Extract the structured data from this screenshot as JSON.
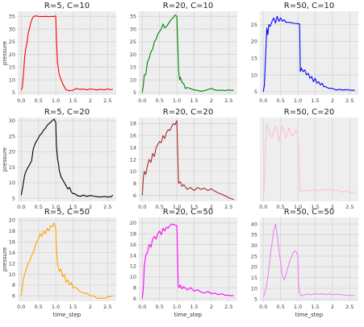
{
  "figure": {
    "background": "#ffffff",
    "axes_facecolor": "#eeeeee",
    "grid_color": "#d4d4d4"
  },
  "chart_data": [
    {
      "type": "line",
      "title": "R=5, C=10",
      "xlabel": "",
      "ylabel": "pressure",
      "color": "#ff0000",
      "xlim": [
        -0.1,
        2.75
      ],
      "ylim": [
        4,
        37
      ],
      "xticks": [
        0.0,
        0.5,
        1.0,
        1.5,
        2.0,
        2.5
      ],
      "yticks": [
        5,
        10,
        15,
        20,
        25,
        30,
        35
      ],
      "x": [
        0.0,
        0.03,
        0.07,
        0.1,
        0.13,
        0.17,
        0.2,
        0.25,
        0.3,
        0.35,
        0.4,
        0.5,
        0.6,
        0.7,
        0.8,
        0.9,
        0.95,
        0.98,
        1.0,
        1.02,
        1.05,
        1.1,
        1.2,
        1.3,
        1.4,
        1.5,
        1.6,
        1.7,
        1.8,
        1.9,
        2.0,
        2.1,
        2.2,
        2.3,
        2.4,
        2.5,
        2.6,
        2.65
      ],
      "y": [
        6,
        7,
        13,
        19,
        22,
        25,
        28,
        31,
        33.5,
        34.8,
        35.2,
        35.0,
        34.9,
        35.0,
        34.9,
        35.0,
        34.9,
        35.2,
        35.0,
        26,
        17,
        12,
        8.5,
        6,
        5.7,
        5.9,
        6.6,
        6.2,
        6.4,
        6.0,
        6.4,
        6.2,
        6.0,
        6.3,
        6.0,
        6.4,
        6.1,
        6.3
      ]
    },
    {
      "type": "line",
      "title": "R=20, C=10",
      "xlabel": "",
      "ylabel": "",
      "color": "#008000",
      "xlim": [
        -0.1,
        2.75
      ],
      "ylim": [
        4,
        37
      ],
      "xticks": [
        0.0,
        0.5,
        1.0,
        1.5,
        2.0,
        2.5
      ],
      "yticks": [
        5,
        10,
        15,
        20,
        25,
        30,
        35
      ],
      "x": [
        0.0,
        0.03,
        0.06,
        0.1,
        0.15,
        0.2,
        0.25,
        0.3,
        0.35,
        0.4,
        0.45,
        0.5,
        0.55,
        0.6,
        0.65,
        0.7,
        0.75,
        0.8,
        0.85,
        0.9,
        0.95,
        1.0,
        1.03,
        1.05,
        1.08,
        1.1,
        1.15,
        1.2,
        1.25,
        1.3,
        1.4,
        1.5,
        1.6,
        1.7,
        1.8,
        1.9,
        2.0,
        2.1,
        2.2,
        2.3,
        2.4,
        2.5,
        2.6,
        2.65
      ],
      "y": [
        5,
        8,
        12,
        12,
        17,
        18.5,
        21,
        22,
        25,
        26,
        28,
        29,
        30,
        32,
        30.5,
        31,
        32,
        33,
        34,
        34.5,
        35.5,
        35,
        22,
        14,
        10,
        11,
        9,
        8.5,
        6.5,
        7,
        6.5,
        6.0,
        5.8,
        5.5,
        5.7,
        6.2,
        6.6,
        6.0,
        5.8,
        5.9,
        5.7,
        6.0,
        5.8,
        5.9
      ]
    },
    {
      "type": "line",
      "title": "R=50, C=10",
      "xlabel": "",
      "ylabel": "",
      "color": "#0000ff",
      "xlim": [
        -0.1,
        2.75
      ],
      "ylim": [
        4,
        29
      ],
      "xticks": [
        0.0,
        0.5,
        1.0,
        1.5,
        2.0,
        2.5
      ],
      "yticks": [
        5,
        10,
        15,
        20,
        25
      ],
      "x": [
        0.0,
        0.03,
        0.06,
        0.1,
        0.13,
        0.16,
        0.2,
        0.25,
        0.3,
        0.35,
        0.4,
        0.45,
        0.5,
        0.55,
        0.6,
        0.65,
        0.7,
        0.8,
        0.9,
        1.0,
        1.05,
        1.07,
        1.1,
        1.15,
        1.2,
        1.25,
        1.3,
        1.35,
        1.4,
        1.45,
        1.5,
        1.55,
        1.6,
        1.65,
        1.7,
        1.75,
        1.8,
        1.9,
        2.0,
        2.1,
        2.2,
        2.3,
        2.4,
        2.5,
        2.6,
        2.65
      ],
      "y": [
        5,
        7,
        14,
        24,
        22,
        25,
        24.5,
        26,
        27,
        25.5,
        27.5,
        26,
        27,
        26,
        26.5,
        25.7,
        25.7,
        25.6,
        25.4,
        25.3,
        25.2,
        11,
        12,
        11,
        11.5,
        10,
        10.5,
        9,
        9.5,
        8,
        9,
        7.5,
        8,
        7,
        7.5,
        6.5,
        6.5,
        6,
        6,
        5.5,
        5.7,
        5.5,
        5.6,
        5.5,
        5.4,
        5.5
      ]
    },
    {
      "type": "line",
      "title": "R=5, C=20",
      "xlabel": "",
      "ylabel": "pressure",
      "color": "#000000",
      "xlim": [
        -0.1,
        2.75
      ],
      "ylim": [
        4,
        31
      ],
      "xticks": [
        0.0,
        0.5,
        1.0,
        1.5,
        2.0,
        2.5
      ],
      "yticks": [
        5,
        10,
        15,
        20,
        25,
        30
      ],
      "x": [
        0.0,
        0.05,
        0.1,
        0.15,
        0.2,
        0.25,
        0.3,
        0.35,
        0.4,
        0.45,
        0.5,
        0.55,
        0.6,
        0.65,
        0.7,
        0.75,
        0.8,
        0.85,
        0.9,
        0.95,
        1.0,
        1.02,
        1.05,
        1.08,
        1.1,
        1.15,
        1.2,
        1.25,
        1.3,
        1.35,
        1.4,
        1.45,
        1.5,
        1.55,
        1.6,
        1.7,
        1.8,
        1.9,
        2.0,
        2.1,
        2.2,
        2.3,
        2.4,
        2.5,
        2.6,
        2.65
      ],
      "y": [
        6,
        9,
        12.5,
        14,
        15,
        16,
        17,
        21,
        22.5,
        23.5,
        24.5,
        25.5,
        26,
        27,
        27.5,
        28.5,
        29,
        29.5,
        30,
        30.5,
        29.5,
        22,
        18,
        16,
        14,
        12,
        11,
        10,
        9,
        8,
        8.5,
        7,
        6.5,
        6.5,
        6,
        5.6,
        6.0,
        5.6,
        5.9,
        5.7,
        5.5,
        5.4,
        5.6,
        5.4,
        5.5,
        6.0
      ]
    },
    {
      "type": "line",
      "title": "R=20, C=20",
      "xlabel": "",
      "ylabel": "",
      "color": "#a52a2a",
      "xlim": [
        -0.1,
        2.75
      ],
      "ylim": [
        5,
        19
      ],
      "xticks": [
        0.0,
        0.5,
        1.0,
        1.5,
        2.0,
        2.5
      ],
      "yticks": [
        6,
        8,
        10,
        12,
        14,
        16,
        18
      ],
      "x": [
        0.0,
        0.03,
        0.06,
        0.1,
        0.15,
        0.2,
        0.25,
        0.3,
        0.35,
        0.4,
        0.45,
        0.5,
        0.55,
        0.6,
        0.65,
        0.7,
        0.75,
        0.8,
        0.85,
        0.9,
        0.95,
        1.0,
        1.03,
        1.05,
        1.1,
        1.15,
        1.2,
        1.3,
        1.4,
        1.5,
        1.6,
        1.7,
        1.8,
        1.9,
        2.0,
        2.1,
        2.2,
        2.3,
        2.4,
        2.5,
        2.6,
        2.65
      ],
      "y": [
        6,
        9,
        10,
        9.5,
        11,
        12,
        11.5,
        13,
        12.5,
        14,
        14.5,
        15,
        14.8,
        16,
        15.5,
        16.5,
        17,
        16.8,
        17.5,
        18,
        17.8,
        18.5,
        12,
        8,
        8.3,
        7.5,
        7.8,
        7.0,
        7.3,
        6.8,
        7.3,
        7.0,
        7.2,
        6.8,
        7.1,
        6.7,
        6.4,
        6.2,
        5.9,
        5.6,
        5.4,
        5.3
      ]
    },
    {
      "type": "line",
      "title": "R=50, C=20",
      "xlabel": "",
      "ylabel": "",
      "color": "#ffc0cb",
      "xlim": [
        -0.1,
        2.75
      ],
      "ylim": [
        4,
        29
      ],
      "xticks": [
        0.0,
        0.5,
        1.0,
        1.5,
        2.0,
        2.5
      ],
      "yticks": [],
      "x": [
        0.0,
        0.03,
        0.06,
        0.1,
        0.15,
        0.2,
        0.25,
        0.3,
        0.35,
        0.4,
        0.45,
        0.5,
        0.55,
        0.6,
        0.65,
        0.7,
        0.75,
        0.8,
        0.85,
        0.9,
        0.95,
        1.0,
        1.03,
        1.05,
        1.08,
        1.1,
        1.2,
        1.3,
        1.4,
        1.5,
        1.6,
        1.7,
        1.8,
        1.9,
        2.0,
        2.1,
        2.2,
        2.3,
        2.4,
        2.5,
        2.6,
        2.65
      ],
      "y": [
        5,
        9,
        20,
        27,
        26,
        24,
        23,
        25,
        26.5,
        25,
        22,
        24,
        26.5,
        25,
        23,
        24.5,
        26,
        24,
        23.5,
        24.5,
        25.5,
        24,
        16,
        7,
        7.5,
        7.2,
        7.0,
        7.4,
        7.1,
        7.6,
        7.0,
        7.6,
        7.2,
        7.8,
        7.1,
        7.4,
        7.0,
        6.8,
        7.2,
        6.5,
        6.8,
        6.5
      ]
    },
    {
      "type": "line",
      "title": "R=5, C=50",
      "xlabel": "time_step",
      "ylabel": "pressure",
      "color": "#ffa500",
      "xlim": [
        -0.1,
        2.75
      ],
      "ylim": [
        5,
        20.5
      ],
      "xticks": [
        0.0,
        0.5,
        1.0,
        1.5,
        2.0,
        2.5
      ],
      "yticks": [
        6,
        8,
        10,
        12,
        14,
        16,
        18,
        20
      ],
      "x": [
        0.0,
        0.03,
        0.06,
        0.1,
        0.15,
        0.2,
        0.25,
        0.3,
        0.35,
        0.4,
        0.45,
        0.5,
        0.55,
        0.6,
        0.65,
        0.7,
        0.75,
        0.8,
        0.85,
        0.9,
        0.95,
        1.0,
        1.02,
        1.05,
        1.1,
        1.15,
        1.2,
        1.25,
        1.3,
        1.35,
        1.4,
        1.45,
        1.5,
        1.6,
        1.7,
        1.8,
        1.9,
        2.0,
        2.1,
        2.2,
        2.3,
        2.4,
        2.5,
        2.6,
        2.65
      ],
      "y": [
        6,
        7.5,
        9,
        10,
        11,
        12,
        12.5,
        13.5,
        14,
        15,
        16,
        16.5,
        17.5,
        17,
        18,
        17.5,
        18.5,
        18,
        19,
        18.8,
        19.5,
        18.5,
        15,
        12,
        10.5,
        11,
        9.5,
        10,
        8.5,
        9,
        8,
        8.5,
        7.5,
        7.5,
        6.8,
        6.5,
        6.5,
        6.0,
        6.0,
        5.5,
        5.6,
        5.5,
        5.8,
        5.9,
        6.0
      ]
    },
    {
      "type": "line",
      "title": "R=20, C=50",
      "xlabel": "time_step",
      "ylabel": "",
      "color": "#ff00ff",
      "xlim": [
        -0.1,
        2.75
      ],
      "ylim": [
        5.5,
        21
      ],
      "xticks": [
        0.0,
        0.5,
        1.0,
        1.5,
        2.0,
        2.5
      ],
      "yticks": [
        6,
        8,
        10,
        12,
        14,
        16,
        18,
        20
      ],
      "x": [
        0.0,
        0.03,
        0.06,
        0.1,
        0.15,
        0.2,
        0.25,
        0.3,
        0.35,
        0.4,
        0.45,
        0.5,
        0.55,
        0.6,
        0.65,
        0.7,
        0.75,
        0.8,
        0.85,
        0.9,
        0.95,
        1.0,
        1.02,
        1.04,
        1.06,
        1.1,
        1.15,
        1.2,
        1.3,
        1.4,
        1.5,
        1.6,
        1.7,
        1.8,
        1.9,
        2.0,
        2.1,
        2.2,
        2.3,
        2.4,
        2.5,
        2.6,
        2.65
      ],
      "y": [
        6,
        8,
        12,
        14,
        14.5,
        16,
        15.5,
        17,
        17.5,
        17,
        18,
        18.5,
        17.8,
        19,
        18.5,
        19.2,
        19,
        19.5,
        19.8,
        19.7,
        19.6,
        19.5,
        15,
        8.5,
        8,
        8.5,
        7.8,
        8.2,
        7.6,
        8.0,
        7.4,
        7.6,
        7.2,
        7.0,
        7.3,
        6.9,
        7.0,
        6.7,
        6.9,
        6.6,
        6.6,
        6.5,
        6.6
      ]
    },
    {
      "type": "line",
      "title": "R=50, C=50",
      "xlabel": "time_step",
      "ylabel": "",
      "color": "#ee82ee",
      "xlim": [
        -0.1,
        2.75
      ],
      "ylim": [
        4,
        43
      ],
      "xticks": [
        0.0,
        0.5,
        1.0,
        1.5,
        2.0,
        2.5
      ],
      "yticks": [
        5,
        10,
        15,
        20,
        25,
        30,
        35,
        40
      ],
      "x": [
        0.0,
        0.05,
        0.1,
        0.15,
        0.2,
        0.25,
        0.3,
        0.35,
        0.4,
        0.45,
        0.5,
        0.55,
        0.6,
        0.65,
        0.7,
        0.75,
        0.8,
        0.85,
        0.9,
        0.95,
        1.0,
        1.02,
        1.05,
        1.1,
        1.2,
        1.3,
        1.4,
        1.5,
        1.6,
        1.7,
        1.8,
        1.9,
        2.0,
        2.1,
        2.2,
        2.3,
        2.4,
        2.5,
        2.6,
        2.65
      ],
      "y": [
        6,
        8,
        12,
        18,
        25,
        31,
        37,
        40,
        35,
        28,
        22,
        16,
        14,
        16,
        19,
        22,
        24,
        26,
        27.5,
        27,
        25,
        12,
        7.5,
        6.5,
        7,
        7.4,
        7.0,
        7.6,
        7.2,
        7.5,
        7.1,
        7.4,
        7.0,
        7.3,
        7.1,
        7.0,
        6.8,
        6.7,
        6.7,
        6.6
      ]
    }
  ]
}
